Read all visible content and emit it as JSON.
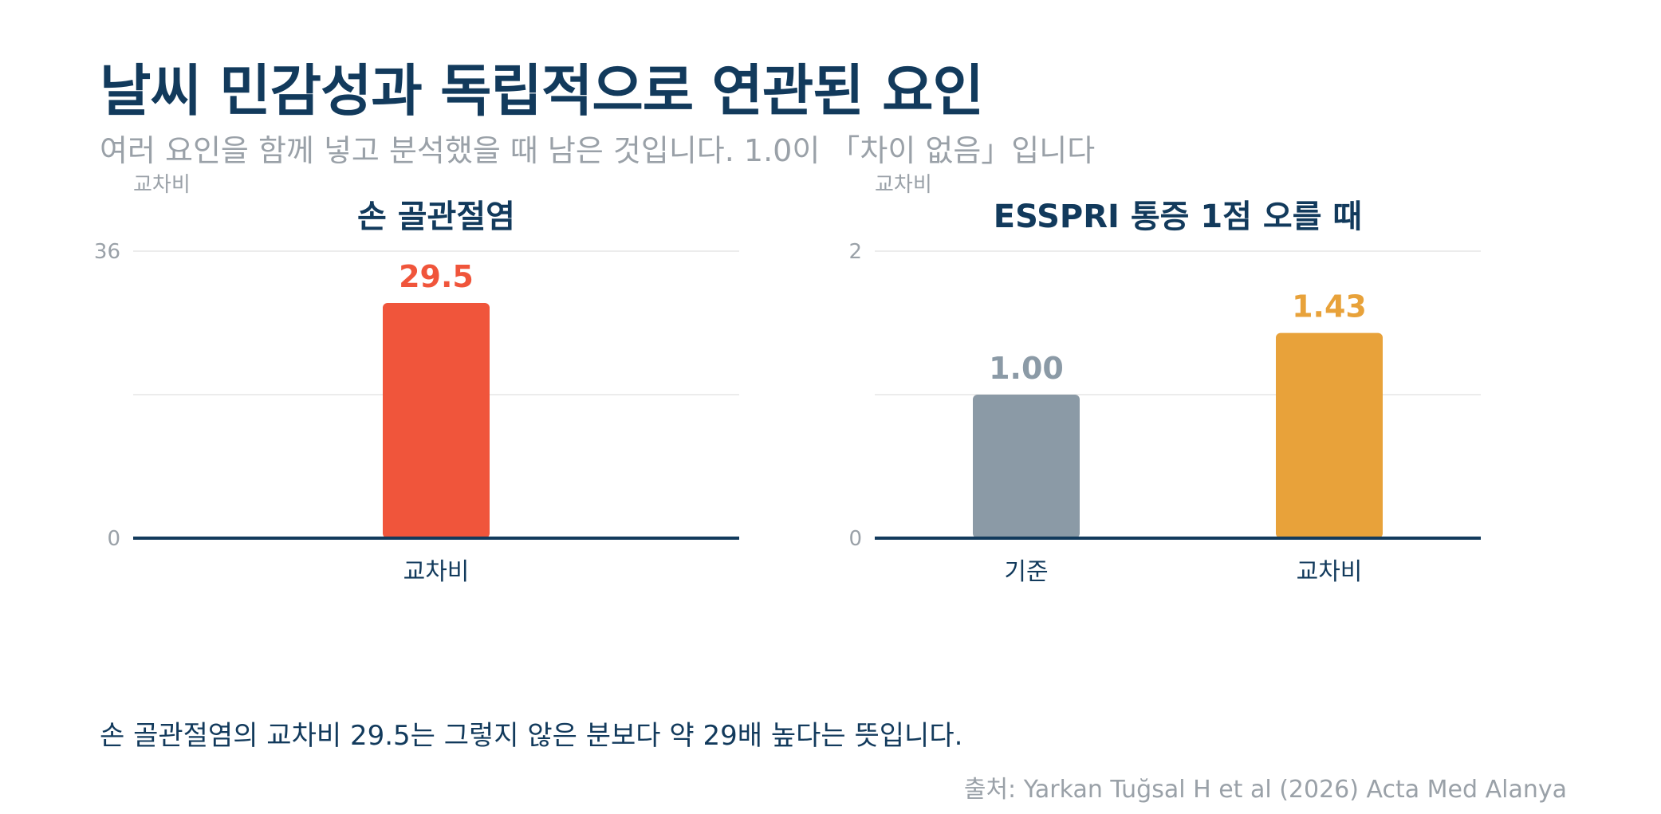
{
  "title": "날씨 민감성과 독립적으로 연관된 요인",
  "subtitle": "여러 요인을 함께 넣고 분석했을 때 남은 것입니다. 1.0이 「차이 없음」입니다",
  "note": "손 골관절염의 교차비 29.5는 그렇지 않은 분보다 약 29배 높다는 뜻입니다.",
  "source": "출처: Yarkan Tuğsal H et al (2026) Acta Med Alanya",
  "chart_data": [
    {
      "type": "bar",
      "title": "손 골관절염",
      "ylabel": "교차비",
      "ylim": [
        0,
        36
      ],
      "yticks": [
        "0",
        "36"
      ],
      "grid": true,
      "categories": [
        "교차비"
      ],
      "values": [
        29.5
      ],
      "value_labels": [
        "29.5"
      ],
      "colors": [
        "#f0553b"
      ]
    },
    {
      "type": "bar",
      "title": "ESSPRI 통증 1점 오를 때",
      "ylabel": "교차비",
      "ylim": [
        0,
        2
      ],
      "yticks": [
        "0",
        "2"
      ],
      "grid": true,
      "categories": [
        "기준",
        "교차비"
      ],
      "values": [
        1.0,
        1.43
      ],
      "value_labels": [
        "1.00",
        "1.43"
      ],
      "colors": [
        "#8b9aa6",
        "#e8a23a"
      ]
    }
  ],
  "colors": {
    "title": "#123a5c",
    "muted": "#9aa1a8",
    "axis": "#123a5c",
    "grid": "#e6e6e6"
  }
}
